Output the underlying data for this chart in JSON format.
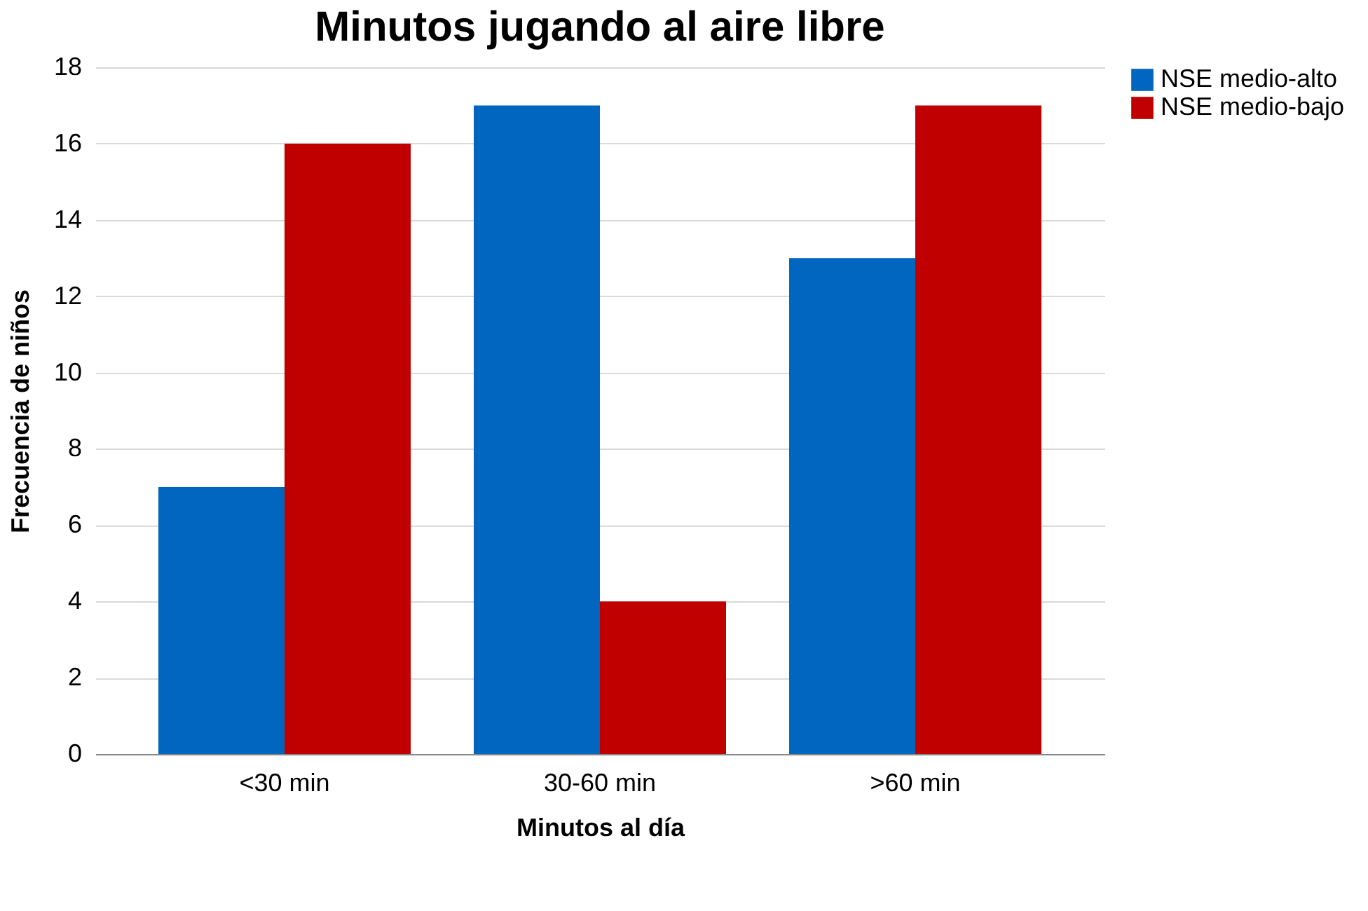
{
  "chart_data": {
    "type": "bar",
    "title": "Minutos jugando al aire libre",
    "xlabel": "Minutos al día",
    "ylabel": "Frecuencia de niños",
    "categories": [
      "<30 min",
      "30-60 min",
      ">60 min"
    ],
    "series": [
      {
        "name": "NSE medio-alto",
        "color": "#0066c0",
        "values": [
          7,
          17,
          13
        ]
      },
      {
        "name": "NSE medio-bajo",
        "color": "#c00000",
        "values": [
          16,
          4,
          17
        ]
      }
    ],
    "ylim": [
      0,
      18
    ],
    "yticks": [
      0,
      2,
      4,
      6,
      8,
      10,
      12,
      14,
      16,
      18
    ],
    "grid": "y",
    "legend": "right"
  }
}
